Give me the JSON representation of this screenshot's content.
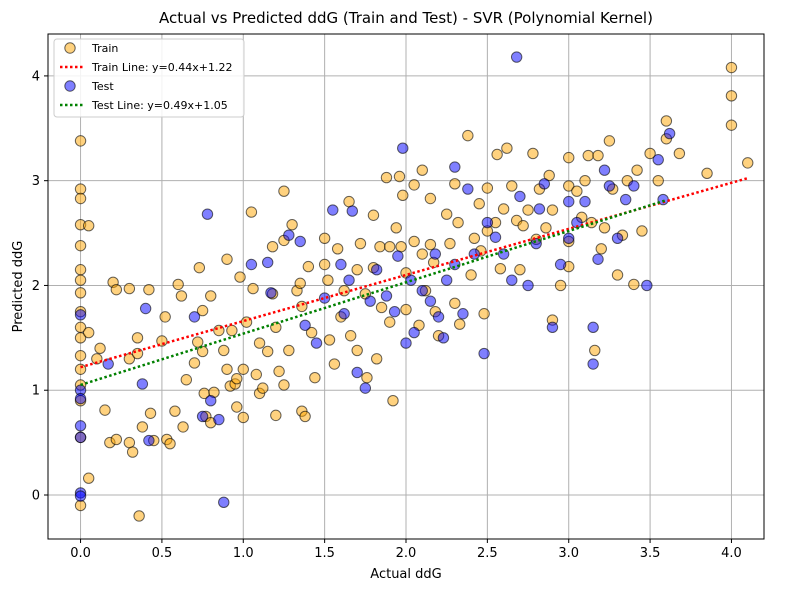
{
  "chart_data": {
    "type": "scatter",
    "title": "Actual vs Predicted ddG (Train and Test) - SVR (Polynomial Kernel)",
    "xlabel": "Actual ddG",
    "ylabel": "Predicted ddG",
    "xlim": [
      -0.2,
      4.2
    ],
    "ylim": [
      -0.42,
      4.4
    ],
    "xticks": [
      0.0,
      0.5,
      1.0,
      1.5,
      2.0,
      2.5,
      3.0,
      3.5,
      4.0
    ],
    "xtick_labels": [
      "0.0",
      "0.5",
      "1.0",
      "1.5",
      "2.0",
      "2.5",
      "3.0",
      "3.5",
      "4.0"
    ],
    "yticks": [
      0,
      1,
      2,
      3,
      4
    ],
    "ytick_labels": [
      "0",
      "1",
      "2",
      "3",
      "4"
    ],
    "grid": true,
    "legend_position": "top-left",
    "colors": {
      "train_fill": "#ffa500",
      "test_fill": "#0000ff",
      "train_line": "#ff0000",
      "test_line": "#008000"
    },
    "series": [
      {
        "name": "Train",
        "kind": "scatter",
        "points": [
          [
            0.0,
            3.38
          ],
          [
            0.0,
            2.92
          ],
          [
            0.0,
            2.83
          ],
          [
            0.0,
            2.58
          ],
          [
            0.0,
            2.38
          ],
          [
            0.0,
            2.15
          ],
          [
            0.0,
            2.05
          ],
          [
            0.0,
            1.93
          ],
          [
            0.0,
            1.75
          ],
          [
            0.0,
            1.6
          ],
          [
            0.0,
            1.5
          ],
          [
            0.0,
            1.33
          ],
          [
            0.0,
            1.2
          ],
          [
            0.0,
            1.05
          ],
          [
            0.0,
            0.9
          ],
          [
            0.0,
            0.55
          ],
          [
            0.0,
            -0.1
          ],
          [
            0.05,
            2.57
          ],
          [
            0.05,
            1.55
          ],
          [
            0.05,
            0.16
          ],
          [
            0.1,
            1.3
          ],
          [
            0.12,
            1.4
          ],
          [
            0.15,
            0.81
          ],
          [
            0.18,
            0.5
          ],
          [
            0.2,
            2.03
          ],
          [
            0.22,
            1.96
          ],
          [
            0.22,
            0.53
          ],
          [
            0.3,
            1.97
          ],
          [
            0.3,
            1.3
          ],
          [
            0.3,
            0.5
          ],
          [
            0.32,
            0.41
          ],
          [
            0.35,
            1.5
          ],
          [
            0.35,
            1.35
          ],
          [
            0.36,
            -0.2
          ],
          [
            0.38,
            0.65
          ],
          [
            0.42,
            1.96
          ],
          [
            0.43,
            0.78
          ],
          [
            0.45,
            0.52
          ],
          [
            0.5,
            1.47
          ],
          [
            0.52,
            1.7
          ],
          [
            0.53,
            0.53
          ],
          [
            0.55,
            0.49
          ],
          [
            0.58,
            0.8
          ],
          [
            0.6,
            2.01
          ],
          [
            0.62,
            1.9
          ],
          [
            0.63,
            0.65
          ],
          [
            0.65,
            1.1
          ],
          [
            0.7,
            1.26
          ],
          [
            0.72,
            1.46
          ],
          [
            0.73,
            2.17
          ],
          [
            0.75,
            1.76
          ],
          [
            0.75,
            1.37
          ],
          [
            0.76,
            0.97
          ],
          [
            0.77,
            0.75
          ],
          [
            0.8,
            1.9
          ],
          [
            0.8,
            0.69
          ],
          [
            0.82,
            0.98
          ],
          [
            0.85,
            1.57
          ],
          [
            0.88,
            1.38
          ],
          [
            0.9,
            2.25
          ],
          [
            0.9,
            1.2
          ],
          [
            0.92,
            1.04
          ],
          [
            0.93,
            1.57
          ],
          [
            0.95,
            1.06
          ],
          [
            0.96,
            1.11
          ],
          [
            0.96,
            0.84
          ],
          [
            0.98,
            2.08
          ],
          [
            1.0,
            1.2
          ],
          [
            1.0,
            0.74
          ],
          [
            1.02,
            1.65
          ],
          [
            1.05,
            2.7
          ],
          [
            1.06,
            1.97
          ],
          [
            1.08,
            1.15
          ],
          [
            1.1,
            1.45
          ],
          [
            1.1,
            0.97
          ],
          [
            1.12,
            1.02
          ],
          [
            1.15,
            1.37
          ],
          [
            1.18,
            2.37
          ],
          [
            1.18,
            1.92
          ],
          [
            1.2,
            1.6
          ],
          [
            1.2,
            0.76
          ],
          [
            1.22,
            1.18
          ],
          [
            1.25,
            2.9
          ],
          [
            1.25,
            2.43
          ],
          [
            1.25,
            1.05
          ],
          [
            1.28,
            1.38
          ],
          [
            1.3,
            2.58
          ],
          [
            1.33,
            1.95
          ],
          [
            1.35,
            2.02
          ],
          [
            1.36,
            1.8
          ],
          [
            1.36,
            0.8
          ],
          [
            1.38,
            0.75
          ],
          [
            1.4,
            2.18
          ],
          [
            1.42,
            1.55
          ],
          [
            1.44,
            1.12
          ],
          [
            1.5,
            2.45
          ],
          [
            1.5,
            2.2
          ],
          [
            1.52,
            2.05
          ],
          [
            1.53,
            1.48
          ],
          [
            1.56,
            1.25
          ],
          [
            1.58,
            2.35
          ],
          [
            1.6,
            1.7
          ],
          [
            1.62,
            1.95
          ],
          [
            1.65,
            2.8
          ],
          [
            1.66,
            1.52
          ],
          [
            1.7,
            2.15
          ],
          [
            1.7,
            1.38
          ],
          [
            1.72,
            2.4
          ],
          [
            1.75,
            1.92
          ],
          [
            1.76,
            1.12
          ],
          [
            1.8,
            2.67
          ],
          [
            1.8,
            2.17
          ],
          [
            1.82,
            1.3
          ],
          [
            1.84,
            2.37
          ],
          [
            1.85,
            1.79
          ],
          [
            1.88,
            3.03
          ],
          [
            1.9,
            2.37
          ],
          [
            1.9,
            1.65
          ],
          [
            1.92,
            0.9
          ],
          [
            1.94,
            2.55
          ],
          [
            1.96,
            3.04
          ],
          [
            1.97,
            2.37
          ],
          [
            1.98,
            2.86
          ],
          [
            2.0,
            2.12
          ],
          [
            2.0,
            1.77
          ],
          [
            2.05,
            2.96
          ],
          [
            2.05,
            2.42
          ],
          [
            2.08,
            1.62
          ],
          [
            2.1,
            3.1
          ],
          [
            2.1,
            2.3
          ],
          [
            2.12,
            1.95
          ],
          [
            2.15,
            2.83
          ],
          [
            2.15,
            2.39
          ],
          [
            2.17,
            2.22
          ],
          [
            2.18,
            1.75
          ],
          [
            2.2,
            1.52
          ],
          [
            2.25,
            2.68
          ],
          [
            2.27,
            2.4
          ],
          [
            2.3,
            2.97
          ],
          [
            2.3,
            1.83
          ],
          [
            2.32,
            2.6
          ],
          [
            2.33,
            1.63
          ],
          [
            2.38,
            3.43
          ],
          [
            2.4,
            2.1
          ],
          [
            2.42,
            2.45
          ],
          [
            2.45,
            2.78
          ],
          [
            2.46,
            2.33
          ],
          [
            2.48,
            1.73
          ],
          [
            2.5,
            2.93
          ],
          [
            2.5,
            2.52
          ],
          [
            2.55,
            2.6
          ],
          [
            2.56,
            3.25
          ],
          [
            2.58,
            2.16
          ],
          [
            2.6,
            2.73
          ],
          [
            2.62,
            3.31
          ],
          [
            2.65,
            2.95
          ],
          [
            2.68,
            2.62
          ],
          [
            2.7,
            2.15
          ],
          [
            2.72,
            2.57
          ],
          [
            2.75,
            2.72
          ],
          [
            2.78,
            3.26
          ],
          [
            2.8,
            2.44
          ],
          [
            2.82,
            2.92
          ],
          [
            2.86,
            2.55
          ],
          [
            2.88,
            3.05
          ],
          [
            2.9,
            2.72
          ],
          [
            2.9,
            1.67
          ],
          [
            2.95,
            2.0
          ],
          [
            3.0,
            3.22
          ],
          [
            3.0,
            2.95
          ],
          [
            3.0,
            2.42
          ],
          [
            3.0,
            2.18
          ],
          [
            3.05,
            2.9
          ],
          [
            3.08,
            2.65
          ],
          [
            3.1,
            3.0
          ],
          [
            3.12,
            3.24
          ],
          [
            3.14,
            2.6
          ],
          [
            3.16,
            1.38
          ],
          [
            3.18,
            3.24
          ],
          [
            3.2,
            2.35
          ],
          [
            3.22,
            2.55
          ],
          [
            3.25,
            3.38
          ],
          [
            3.27,
            2.92
          ],
          [
            3.3,
            2.1
          ],
          [
            3.33,
            2.48
          ],
          [
            3.36,
            3.0
          ],
          [
            3.4,
            2.01
          ],
          [
            3.42,
            3.1
          ],
          [
            3.45,
            2.52
          ],
          [
            3.5,
            3.26
          ],
          [
            3.55,
            3.0
          ],
          [
            3.6,
            3.57
          ],
          [
            3.6,
            3.4
          ],
          [
            3.68,
            3.26
          ],
          [
            3.85,
            3.07
          ],
          [
            4.0,
            4.08
          ],
          [
            4.0,
            3.81
          ],
          [
            4.0,
            3.53
          ],
          [
            4.1,
            3.17
          ]
        ]
      },
      {
        "name": "Test",
        "kind": "scatter",
        "points": [
          [
            0.0,
            1.72
          ],
          [
            0.0,
            1.0
          ],
          [
            0.0,
            0.92
          ],
          [
            0.0,
            0.66
          ],
          [
            0.0,
            0.55
          ],
          [
            0.0,
            0.02
          ],
          [
            0.0,
            -0.01
          ],
          [
            0.17,
            1.25
          ],
          [
            0.38,
            1.06
          ],
          [
            0.4,
            1.78
          ],
          [
            0.42,
            0.52
          ],
          [
            0.7,
            1.7
          ],
          [
            0.75,
            0.75
          ],
          [
            0.78,
            2.68
          ],
          [
            0.8,
            0.9
          ],
          [
            0.85,
            0.72
          ],
          [
            0.88,
            -0.07
          ],
          [
            1.05,
            2.2
          ],
          [
            1.15,
            2.22
          ],
          [
            1.17,
            1.93
          ],
          [
            1.28,
            2.48
          ],
          [
            1.35,
            2.42
          ],
          [
            1.38,
            1.62
          ],
          [
            1.45,
            1.45
          ],
          [
            1.5,
            1.88
          ],
          [
            1.55,
            2.72
          ],
          [
            1.6,
            2.2
          ],
          [
            1.62,
            1.73
          ],
          [
            1.65,
            2.05
          ],
          [
            1.67,
            2.71
          ],
          [
            1.7,
            1.17
          ],
          [
            1.75,
            1.02
          ],
          [
            1.78,
            1.85
          ],
          [
            1.82,
            2.15
          ],
          [
            1.88,
            1.9
          ],
          [
            1.93,
            1.75
          ],
          [
            1.95,
            2.28
          ],
          [
            1.98,
            3.31
          ],
          [
            2.0,
            1.45
          ],
          [
            2.03,
            2.05
          ],
          [
            2.05,
            1.55
          ],
          [
            2.1,
            1.95
          ],
          [
            2.15,
            1.85
          ],
          [
            2.18,
            2.3
          ],
          [
            2.2,
            1.7
          ],
          [
            2.23,
            1.5
          ],
          [
            2.25,
            2.05
          ],
          [
            2.3,
            3.13
          ],
          [
            2.3,
            2.2
          ],
          [
            2.35,
            1.73
          ],
          [
            2.38,
            2.92
          ],
          [
            2.42,
            2.3
          ],
          [
            2.48,
            1.35
          ],
          [
            2.5,
            2.6
          ],
          [
            2.55,
            2.46
          ],
          [
            2.6,
            2.3
          ],
          [
            2.65,
            2.05
          ],
          [
            2.68,
            4.18
          ],
          [
            2.7,
            2.85
          ],
          [
            2.75,
            2.0
          ],
          [
            2.8,
            2.4
          ],
          [
            2.82,
            2.73
          ],
          [
            2.85,
            2.97
          ],
          [
            2.9,
            1.6
          ],
          [
            2.95,
            2.2
          ],
          [
            3.0,
            2.8
          ],
          [
            3.0,
            2.45
          ],
          [
            3.05,
            2.6
          ],
          [
            3.1,
            2.8
          ],
          [
            3.15,
            1.6
          ],
          [
            3.15,
            1.25
          ],
          [
            3.18,
            2.25
          ],
          [
            3.22,
            3.1
          ],
          [
            3.25,
            2.95
          ],
          [
            3.3,
            2.45
          ],
          [
            3.35,
            2.82
          ],
          [
            3.4,
            2.95
          ],
          [
            3.48,
            2.0
          ],
          [
            3.55,
            3.2
          ],
          [
            3.58,
            2.82
          ],
          [
            3.62,
            3.45
          ]
        ]
      },
      {
        "name": "Train Line: y=0.44x+1.22",
        "kind": "line",
        "slope": 0.44,
        "intercept": 1.22,
        "x_range": [
          0.0,
          4.1
        ]
      },
      {
        "name": "Test Line: y=0.49x+1.05",
        "kind": "line",
        "slope": 0.49,
        "intercept": 1.05,
        "x_range": [
          0.0,
          3.6
        ]
      }
    ]
  }
}
